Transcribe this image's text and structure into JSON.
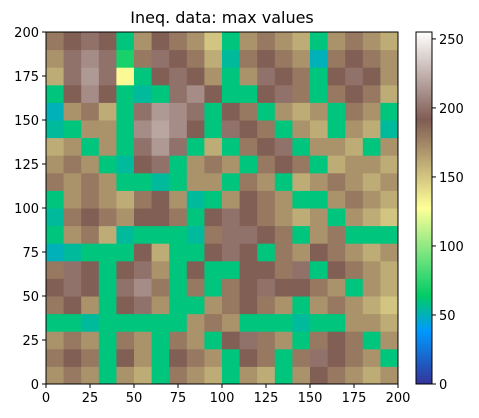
{
  "chart_data": {
    "type": "heatmap",
    "title": "Ineq. data: max values",
    "colormap": "terrain",
    "xlim": [
      0,
      200
    ],
    "ylim": [
      0,
      200
    ],
    "xticks": [
      0,
      25,
      50,
      75,
      100,
      125,
      150,
      175,
      200
    ],
    "yticks": [
      0,
      25,
      50,
      75,
      100,
      125,
      150,
      175,
      200
    ],
    "clim": [
      0,
      255
    ],
    "cticks": [
      0,
      50,
      100,
      150,
      200,
      250
    ],
    "z": [
      [
        170,
        180,
        170,
        60,
        170,
        160,
        60,
        180,
        170,
        160,
        60,
        170,
        160,
        60,
        170,
        190,
        180,
        170,
        160,
        170
      ],
      [
        180,
        190,
        180,
        60,
        190,
        170,
        60,
        190,
        180,
        170,
        60,
        190,
        180,
        60,
        180,
        200,
        190,
        180,
        170,
        60
      ],
      [
        170,
        180,
        170,
        60,
        180,
        170,
        60,
        180,
        170,
        60,
        190,
        200,
        180,
        170,
        60,
        180,
        190,
        180,
        60,
        170
      ],
      [
        60,
        60,
        55,
        60,
        60,
        60,
        60,
        60,
        170,
        180,
        170,
        60,
        60,
        60,
        55,
        60,
        60,
        170,
        170,
        160
      ],
      [
        180,
        190,
        170,
        60,
        190,
        200,
        170,
        60,
        60,
        170,
        180,
        190,
        180,
        170,
        60,
        170,
        180,
        170,
        160,
        150
      ],
      [
        190,
        200,
        190,
        60,
        200,
        210,
        180,
        60,
        180,
        60,
        180,
        190,
        200,
        190,
        190,
        180,
        170,
        60,
        170,
        160
      ],
      [
        180,
        200,
        190,
        60,
        190,
        200,
        170,
        60,
        190,
        60,
        60,
        190,
        190,
        180,
        200,
        60,
        190,
        180,
        170,
        160
      ],
      [
        50,
        55,
        60,
        60,
        60,
        190,
        160,
        60,
        60,
        190,
        200,
        190,
        60,
        180,
        170,
        190,
        180,
        170,
        160,
        170
      ],
      [
        60,
        170,
        180,
        160,
        55,
        60,
        60,
        60,
        55,
        180,
        200,
        200,
        190,
        180,
        60,
        170,
        180,
        60,
        60,
        60
      ],
      [
        55,
        180,
        190,
        180,
        170,
        190,
        190,
        180,
        60,
        190,
        200,
        190,
        180,
        170,
        160,
        170,
        60,
        170,
        160,
        150
      ],
      [
        60,
        170,
        180,
        170,
        160,
        180,
        190,
        170,
        55,
        60,
        170,
        190,
        180,
        170,
        60,
        60,
        170,
        180,
        170,
        160
      ],
      [
        180,
        170,
        180,
        170,
        60,
        60,
        55,
        60,
        170,
        170,
        60,
        180,
        170,
        60,
        160,
        170,
        180,
        170,
        160,
        170
      ],
      [
        170,
        180,
        170,
        60,
        55,
        190,
        200,
        60,
        170,
        180,
        170,
        60,
        180,
        190,
        180,
        60,
        160,
        170,
        170,
        160
      ],
      [
        160,
        170,
        60,
        170,
        60,
        200,
        215,
        200,
        60,
        160,
        60,
        180,
        190,
        200,
        60,
        170,
        170,
        160,
        60,
        170
      ],
      [
        55,
        60,
        170,
        170,
        60,
        210,
        220,
        210,
        190,
        60,
        200,
        190,
        180,
        60,
        170,
        160,
        60,
        170,
        160,
        55
      ],
      [
        50,
        170,
        180,
        160,
        60,
        200,
        215,
        210,
        200,
        60,
        190,
        180,
        60,
        170,
        160,
        170,
        60,
        180,
        170,
        60
      ],
      [
        60,
        190,
        210,
        190,
        60,
        55,
        60,
        200,
        210,
        190,
        60,
        60,
        190,
        200,
        180,
        60,
        180,
        190,
        180,
        160
      ],
      [
        160,
        200,
        215,
        200,
        130,
        60,
        190,
        200,
        190,
        170,
        60,
        170,
        200,
        190,
        180,
        60,
        190,
        200,
        190,
        170
      ],
      [
        170,
        200,
        210,
        200,
        70,
        180,
        200,
        190,
        180,
        160,
        55,
        180,
        190,
        180,
        170,
        50,
        180,
        190,
        180,
        170
      ],
      [
        180,
        190,
        200,
        190,
        60,
        170,
        190,
        180,
        170,
        150,
        60,
        170,
        180,
        170,
        160,
        60,
        170,
        180,
        170,
        160
      ]
    ]
  }
}
